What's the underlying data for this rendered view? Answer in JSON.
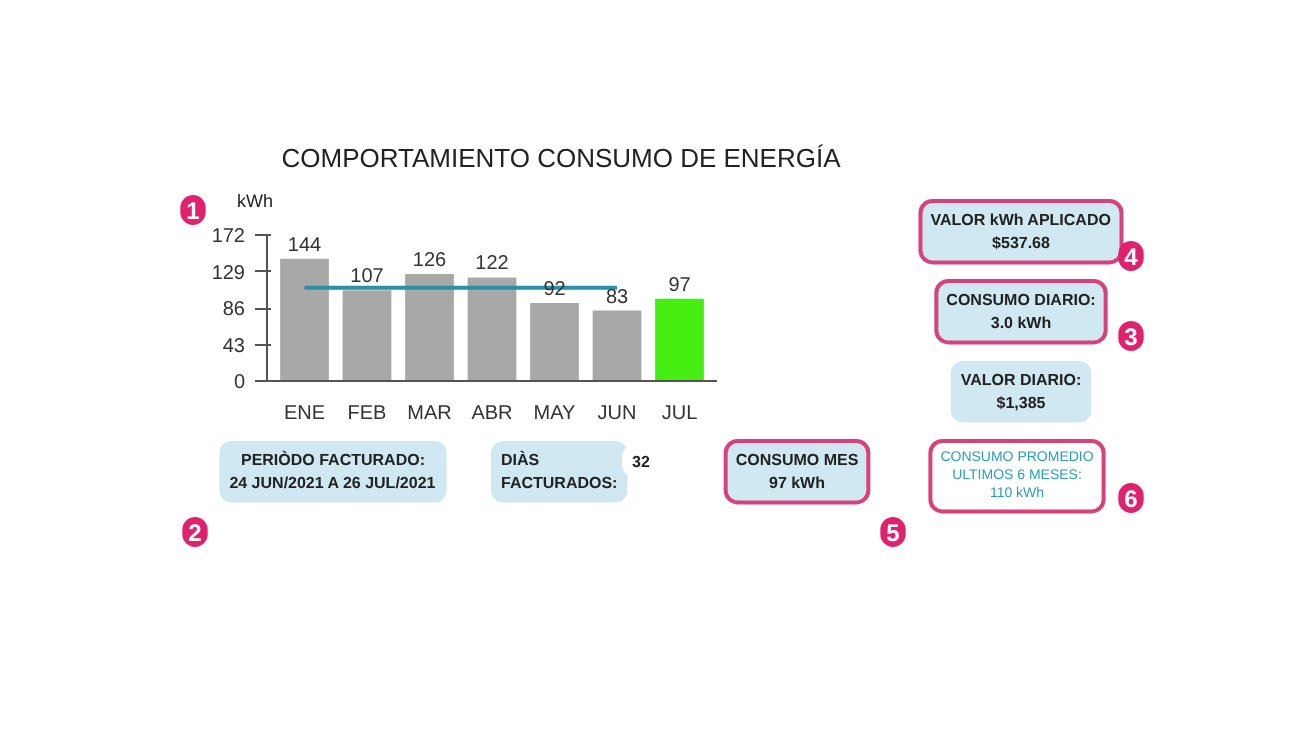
{
  "chart_data": {
    "type": "bar",
    "title": "COMPORTAMIENTO CONSUMO DE ENERGÍA",
    "ylabel": "kWh",
    "categories": [
      "ENE",
      "FEB",
      "MAR",
      "ABR",
      "MAY",
      "JUN",
      "JUL"
    ],
    "values": [
      144,
      107,
      126,
      122,
      92,
      83,
      97
    ],
    "colors": [
      "#a8a8a8",
      "#a8a8a8",
      "#a8a8a8",
      "#a8a8a8",
      "#a8a8a8",
      "#a8a8a8",
      "#44ee11"
    ],
    "ylim": [
      0,
      172
    ],
    "yticks": [
      0,
      43,
      86,
      129,
      172
    ],
    "grid": false,
    "data_labels": true,
    "ref_lines": [
      {
        "axis": "y",
        "value": 110,
        "label": null,
        "color": "#2a8fa8"
      }
    ],
    "annotations": [
      "VALOR kWh APLICADO\n$537.68",
      "CONSUMO DIARIO:\n3.0 kWh",
      "VALOR DIARIO:\n$1,385",
      "PERIÒDO FACTURADO:\n24 JUN/2021 A 26 JUL/2021",
      "DIÀS\nFACTURADOS:",
      "32",
      "CONSUMO MES\n97 kWh",
      "CONSUMO PROMEDIO\nULTIMOS 6 MESES:\n110 kWh",
      "1",
      "2",
      "3",
      "4",
      "5",
      "6"
    ]
  }
}
